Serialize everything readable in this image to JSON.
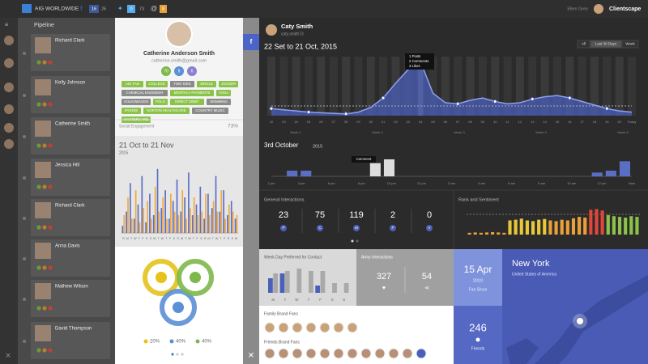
{
  "top_bar": {
    "account": "AIG WORLDWIDE",
    "facebook": [
      "16",
      "26"
    ],
    "twitter": [
      "0",
      "73"
    ],
    "email": [
      "@",
      "8"
    ],
    "user": "Ellen Grey",
    "brand": "Clientscape"
  },
  "pipeline": {
    "title": "Pipeline",
    "contacts": [
      "Richard Clark",
      "Kelly Johnson",
      "Catherine Smith",
      "Jessica Hill",
      "Richard Clark",
      "Anna Davis",
      "Mathew Wilson",
      "David Thompson"
    ]
  },
  "profile": {
    "name": "Catherine Anderson Smith",
    "email": "catherine.smith@gmail.com",
    "stats": [
      "70",
      "9",
      "6"
    ],
    "tags": [
      "AIG FAN",
      "COLLEGE",
      "TWO KIDS",
      "SINGLE",
      "JOGGER",
      "CHEMICAL ENGINEER",
      "MONTHLY PAYMENTS",
      "YOGA",
      "VOLKSWAGEN",
      "POLO",
      "DIRECT DEBIT",
      "SKIMMING",
      "IPHONE",
      "NORTON HEALTHCARE",
      "COUNTRY MUSIC",
      "MASTERCARD"
    ],
    "engagement_label": "Social Engagement",
    "engagement": "73%",
    "period": "21 Oct to 21 Nov",
    "year": "2015",
    "activity": {
      "ylim": [
        0,
        100
      ],
      "series": [
        {
          "color": "#5a6fc4",
          "values": [
            10,
            30,
            70,
            20,
            40,
            80,
            15,
            55,
            25,
            90,
            35,
            60,
            20,
            45,
            75,
            30,
            50,
            85,
            25,
            40,
            65,
            20,
            55,
            35,
            80,
            30,
            60,
            25,
            45,
            20
          ]
        },
        {
          "color": "#f0a840",
          "values": [
            25,
            50,
            20,
            60,
            15,
            35,
            45,
            20,
            65,
            30,
            50,
            20,
            55,
            30,
            25,
            60,
            20,
            35,
            50,
            25,
            30,
            55,
            25,
            45,
            30,
            60,
            20,
            40,
            30,
            25
          ]
        }
      ],
      "day_letters": [
        "S",
        "M",
        "T",
        "W",
        "T",
        "F",
        "S",
        "S",
        "M",
        "T",
        "W",
        "T",
        "F",
        "S",
        "S",
        "M",
        "T",
        "W",
        "T",
        "F",
        "S",
        "S",
        "M",
        "T",
        "W",
        "T",
        "F",
        "S",
        "S",
        "M"
      ]
    },
    "shares": [
      {
        "color": "#e6c21a",
        "label": "20%"
      },
      {
        "color": "#5b8fd6",
        "label": "40%"
      },
      {
        "color": "#7cb84a",
        "label": "40%"
      }
    ]
  },
  "main": {
    "name": "Caty Smith",
    "handle": "caty.smith73",
    "period": "22 Set to 21 Oct, 2015",
    "ranges": [
      "All",
      "Last 30 Days",
      "Week"
    ],
    "tooltip": [
      "1 Posts",
      "2 Comments",
      "3 Likes"
    ],
    "timeline": {
      "ylim": [
        0,
        100
      ],
      "values": [
        12,
        10,
        8,
        6,
        5,
        4,
        3,
        6,
        14,
        30,
        55,
        78,
        92,
        38,
        22,
        20,
        26,
        30,
        24,
        20,
        22,
        28,
        32,
        34,
        30,
        24,
        18,
        12,
        8,
        6
      ],
      "labels": [
        "22",
        "23",
        "24",
        "25",
        "26",
        "27",
        "28",
        "29",
        "30",
        "01",
        "02",
        "03",
        "04",
        "05",
        "06",
        "07",
        "08",
        "09",
        "10",
        "11",
        "12",
        "13",
        "14",
        "15",
        "16",
        "17",
        "18",
        "19",
        "20",
        "Today"
      ],
      "weeks": [
        "Week 1",
        "Week 2",
        "Week 3",
        "Week 4",
        "Week 5"
      ]
    },
    "day": {
      "title": "3rd October",
      "year": "2015",
      "tooltip": "Comment",
      "ylim": [
        0,
        12
      ],
      "values": [
        0,
        3,
        3,
        0,
        0,
        0,
        0,
        7,
        9,
        0,
        0,
        0,
        0,
        0,
        0,
        0,
        0,
        0,
        0,
        0,
        0,
        0,
        0,
        2,
        3,
        8
      ],
      "labels": [
        "2 pm",
        "4 pm",
        "6 pm",
        "8 pm",
        "10 pm",
        "12 pm",
        "2 am",
        "4 am",
        "6 am",
        "8 am",
        "10 am",
        "12 pm",
        "Now"
      ]
    },
    "interactions": {
      "title": "General Interactions",
      "items": [
        {
          "value": "23",
          "letter": "P"
        },
        {
          "value": "75",
          "letter": "C"
        },
        {
          "value": "119",
          "letter": "M"
        },
        {
          "value": "2",
          "letter": "P"
        },
        {
          "value": "0",
          "letter": "V"
        }
      ]
    },
    "rank": {
      "title": "Rank and Sentiment",
      "ylim": [
        0,
        80
      ],
      "values": [
        5,
        6,
        5,
        6,
        7,
        6,
        5,
        40,
        42,
        45,
        40,
        38,
        42,
        44,
        40,
        38,
        42,
        40,
        46,
        50,
        48,
        70,
        72,
        68,
        55,
        52,
        50,
        48,
        52,
        50
      ],
      "colors": [
        "#e8a03a",
        "#e8a03a",
        "#e8a03a",
        "#e8a03a",
        "#e8a03a",
        "#e8a03a",
        "#e8a03a",
        "#e8c83a",
        "#e8c83a",
        "#e8c83a",
        "#e8c83a",
        "#e8c83a",
        "#e8c83a",
        "#e8c83a",
        "#e8a03a",
        "#e8a03a",
        "#e8a03a",
        "#e8a03a",
        "#e8a03a",
        "#e8a03a",
        "#e8a03a",
        "#e0463a",
        "#e0463a",
        "#e0463a",
        "#8bc34a",
        "#8bc34a",
        "#8bc34a",
        "#8bc34a",
        "#8bc34a",
        "#8bc34a"
      ]
    },
    "weekday": {
      "title": "Week Day Preferred for Contact",
      "ylim": [
        0,
        60
      ],
      "days": [
        "M",
        "T",
        "W",
        "T",
        "F",
        "S",
        "S"
      ],
      "series": [
        {
          "color": "#4a5fb8",
          "values": [
            30,
            40,
            0,
            0,
            15,
            0,
            0
          ]
        },
        {
          "color": "#a9a9a9",
          "values": [
            40,
            45,
            50,
            45,
            45,
            20,
            20
          ]
        }
      ]
    },
    "army": {
      "title": "Army Interactions",
      "values": [
        "327",
        "54"
      ]
    },
    "fan": {
      "date": "15 Apr",
      "year": "2010",
      "label": "Fan Since"
    },
    "friends": {
      "value": "246",
      "label": "Friends"
    },
    "location": {
      "city": "New York",
      "country": "United States of America"
    },
    "family_label": "Family Brand Fans",
    "friends_label": "Friends Brand Fans"
  }
}
